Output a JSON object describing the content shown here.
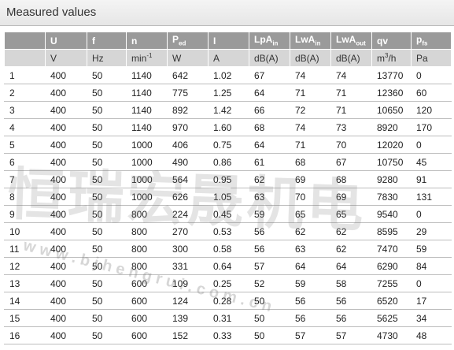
{
  "title": "Measured values",
  "table": {
    "header": [
      [],
      [
        {
          "t": "U"
        }
      ],
      [
        {
          "t": "f"
        }
      ],
      [
        {
          "t": "n"
        }
      ],
      [
        {
          "t": "P",
          "sub": "ed"
        }
      ],
      [
        {
          "t": "I"
        }
      ],
      [
        {
          "t": "LpA",
          "sub": "in"
        }
      ],
      [
        {
          "t": "LwA",
          "sub": "in"
        }
      ],
      [
        {
          "t": "LwA",
          "sub": "out"
        }
      ],
      [
        {
          "t": "qv"
        }
      ],
      [
        {
          "t": "p",
          "sub": "fs"
        }
      ]
    ],
    "units": [
      [],
      [
        {
          "t": "V"
        }
      ],
      [
        {
          "t": "Hz"
        }
      ],
      [
        {
          "t": "min",
          "sup": "-1"
        }
      ],
      [
        {
          "t": "W"
        }
      ],
      [
        {
          "t": "A"
        }
      ],
      [
        {
          "t": "dB(A)"
        }
      ],
      [
        {
          "t": "dB(A)"
        }
      ],
      [
        {
          "t": "dB(A)"
        }
      ],
      [
        {
          "t": "m",
          "sup": "3",
          "after": "/h"
        }
      ],
      [
        {
          "t": "Pa"
        }
      ]
    ],
    "rows": [
      [
        "1",
        "400",
        "50",
        "1140",
        "642",
        "1.02",
        "67",
        "74",
        "74",
        "13770",
        "0"
      ],
      [
        "2",
        "400",
        "50",
        "1140",
        "775",
        "1.25",
        "64",
        "71",
        "71",
        "12360",
        "60"
      ],
      [
        "3",
        "400",
        "50",
        "1140",
        "892",
        "1.42",
        "66",
        "72",
        "71",
        "10650",
        "120"
      ],
      [
        "4",
        "400",
        "50",
        "1140",
        "970",
        "1.60",
        "68",
        "74",
        "73",
        "8920",
        "170"
      ],
      [
        "5",
        "400",
        "50",
        "1000",
        "406",
        "0.75",
        "64",
        "71",
        "70",
        "12020",
        "0"
      ],
      [
        "6",
        "400",
        "50",
        "1000",
        "490",
        "0.86",
        "61",
        "68",
        "67",
        "10750",
        "45"
      ],
      [
        "7",
        "400",
        "50",
        "1000",
        "564",
        "0.95",
        "62",
        "69",
        "68",
        "9280",
        "91"
      ],
      [
        "8",
        "400",
        "50",
        "1000",
        "626",
        "1.05",
        "63",
        "70",
        "69",
        "7830",
        "131"
      ],
      [
        "9",
        "400",
        "50",
        "800",
        "224",
        "0.45",
        "59",
        "65",
        "65",
        "9540",
        "0"
      ],
      [
        "10",
        "400",
        "50",
        "800",
        "270",
        "0.53",
        "56",
        "62",
        "62",
        "8595",
        "29"
      ],
      [
        "11",
        "400",
        "50",
        "800",
        "300",
        "0.58",
        "56",
        "63",
        "62",
        "7470",
        "59"
      ],
      [
        "12",
        "400",
        "50",
        "800",
        "331",
        "0.64",
        "57",
        "64",
        "64",
        "6290",
        "84"
      ],
      [
        "13",
        "400",
        "50",
        "600",
        "109",
        "0.25",
        "52",
        "59",
        "58",
        "7255",
        "0"
      ],
      [
        "14",
        "400",
        "50",
        "600",
        "124",
        "0.28",
        "50",
        "56",
        "56",
        "6520",
        "17"
      ],
      [
        "15",
        "400",
        "50",
        "600",
        "139",
        "0.31",
        "50",
        "56",
        "56",
        "5625",
        "34"
      ],
      [
        "16",
        "400",
        "50",
        "600",
        "152",
        "0.33",
        "50",
        "57",
        "57",
        "4730",
        "48"
      ]
    ]
  },
  "watermark": {
    "name": "恒瑞宏晟机电",
    "url": "w w w . b j h e n g r u i . c o m . c n"
  }
}
